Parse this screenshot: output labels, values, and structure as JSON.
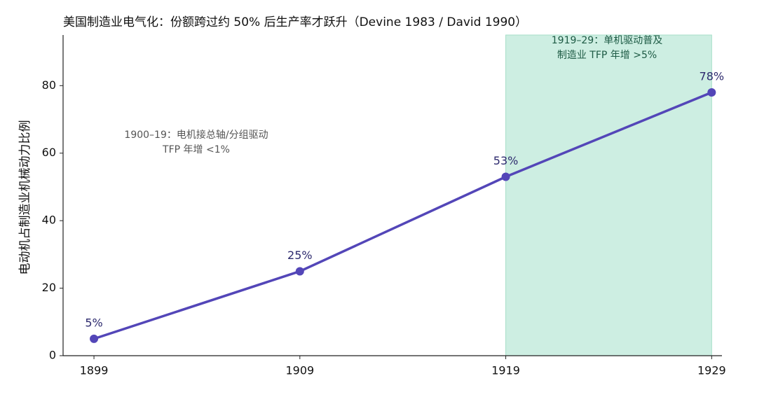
{
  "chart_data": {
    "type": "line",
    "title": "美国制造业电气化：份额跨过约 50% 后生产率才跃升（Devine 1983 / David 1990）",
    "y_label": "电动机占制造业机械动力比例",
    "x": [
      1899,
      1909,
      1919,
      1929
    ],
    "series": [
      {
        "color": "#5346b8",
        "values": [
          5,
          25,
          53,
          78
        ],
        "value_labels": [
          "5%",
          "25%",
          "53%",
          "78%"
        ]
      }
    ],
    "xlim": [
      1897.5,
      1929.5
    ],
    "xticks": [
      1899,
      1909,
      1919,
      1929
    ],
    "ylim": [
      0,
      95
    ],
    "yticks": [
      0,
      20,
      40,
      60,
      80
    ],
    "highlight": {
      "x": [
        1919,
        1929
      ],
      "color": "#cdeee2"
    },
    "annotations": [
      {
        "lines": [
          "1900–19：电机接总轴/分组驱动",
          "TFP 年增 <1%"
        ]
      },
      {
        "lines": [
          "1919–29：单机驱动普及",
          "制造业 TFP 年增 >5%"
        ]
      }
    ]
  }
}
